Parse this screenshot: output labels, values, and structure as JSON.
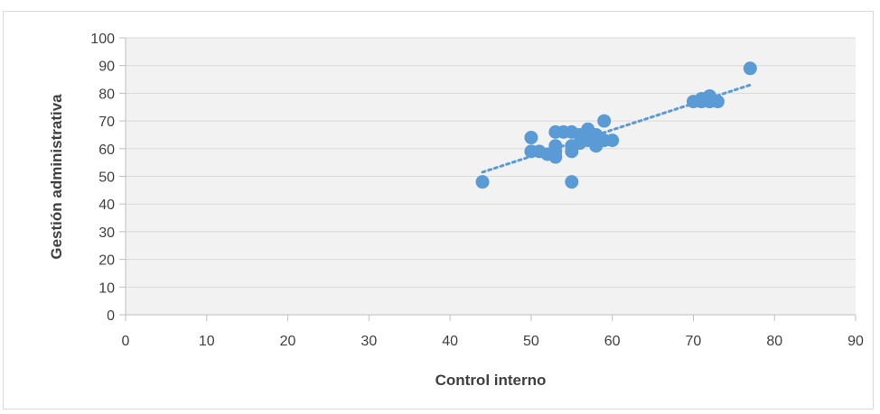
{
  "chart_data": {
    "type": "scatter",
    "xlabel": "Control interno",
    "ylabel": "Gestión administrativa",
    "xlim": [
      0,
      90
    ],
    "ylim": [
      0,
      100
    ],
    "x_ticks": [
      0,
      10,
      20,
      30,
      40,
      50,
      60,
      70,
      80,
      90
    ],
    "y_ticks": [
      0,
      10,
      20,
      30,
      40,
      50,
      60,
      70,
      80,
      90,
      100
    ],
    "grid": "horizontal",
    "legend": "none",
    "colors": {
      "points": "#5b9bd5",
      "plot_bg": "#f2f2f2",
      "grid": "#d9d9d9",
      "trendline": "#5b9bd5"
    },
    "series": [
      {
        "points": [
          [
            44,
            48
          ],
          [
            50,
            64
          ],
          [
            50,
            59
          ],
          [
            51,
            59
          ],
          [
            52,
            58
          ],
          [
            53,
            66
          ],
          [
            53,
            61
          ],
          [
            53,
            57
          ],
          [
            53,
            59
          ],
          [
            54,
            66
          ],
          [
            55,
            66
          ],
          [
            55,
            61
          ],
          [
            55,
            59
          ],
          [
            55,
            48
          ],
          [
            56,
            65
          ],
          [
            56,
            62
          ],
          [
            57,
            67
          ],
          [
            57,
            65
          ],
          [
            57,
            63
          ],
          [
            58,
            65
          ],
          [
            58,
            61
          ],
          [
            58,
            63
          ],
          [
            59,
            70
          ],
          [
            59,
            63
          ],
          [
            60,
            63
          ],
          [
            70,
            77
          ],
          [
            71,
            78
          ],
          [
            71,
            77
          ],
          [
            72,
            79
          ],
          [
            72,
            77
          ],
          [
            73,
            77
          ],
          [
            77,
            89
          ]
        ]
      }
    ],
    "trendline": {
      "type": "linear",
      "x": [
        44,
        77
      ],
      "y": [
        51.5,
        83
      ]
    }
  }
}
